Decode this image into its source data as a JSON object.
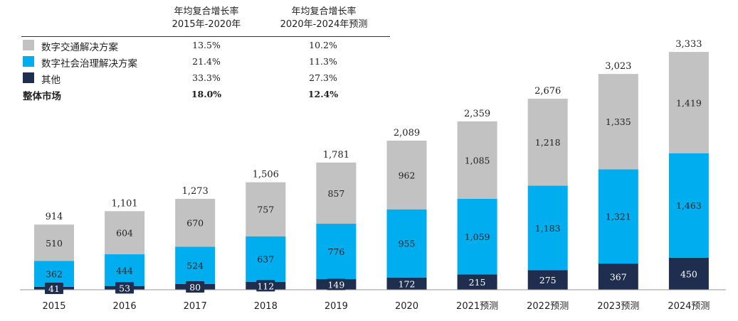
{
  "legend_table": {
    "header_1_line1": "年均复合增长率",
    "header_1_line2": "2015年-2020年",
    "header_2_line1": "年均复合增长率",
    "header_2_line2": "2020年-2024年预测",
    "rows": [
      {
        "label": "数字交通解决方案",
        "cagr_1": "13.5%",
        "cagr_2": "10.2%",
        "color": "#c2c2c2"
      },
      {
        "label": "数字社会治理解决方案",
        "cagr_1": "21.4%",
        "cagr_2": "11.3%",
        "color": "#00aeef"
      },
      {
        "label": "其他",
        "cagr_1": "33.3%",
        "cagr_2": "27.3%",
        "color": "#1f2d4f"
      }
    ],
    "total": {
      "label": "整体市场",
      "cagr_1": "18.0%",
      "cagr_2": "12.4%"
    }
  },
  "chart_data": {
    "type": "bar",
    "stacked": true,
    "categories": [
      "2015",
      "2016",
      "2017",
      "2018",
      "2019",
      "2020",
      "2021预测",
      "2022预测",
      "2023预测",
      "2024预测"
    ],
    "series": [
      {
        "name": "其他",
        "values": [
          41,
          53,
          80,
          112,
          149,
          172,
          215,
          275,
          367,
          450
        ],
        "color": "#1f2d4f"
      },
      {
        "name": "数字社会治理解决方案",
        "values": [
          362,
          444,
          524,
          637,
          776,
          955,
          1059,
          1183,
          1321,
          1463
        ],
        "color": "#00aeef"
      },
      {
        "name": "数字交通解决方案",
        "values": [
          510,
          604,
          670,
          757,
          857,
          962,
          1085,
          1218,
          1335,
          1419
        ],
        "color": "#c2c2c2"
      }
    ],
    "value_labels": [
      [
        "41",
        "53",
        "80",
        "112",
        "149",
        "172",
        "215",
        "275",
        "367",
        "450"
      ],
      [
        "362",
        "444",
        "524",
        "637",
        "776",
        "955",
        "1,059",
        "1,183",
        "1,321",
        "1,463"
      ],
      [
        "510",
        "604",
        "670",
        "757",
        "857",
        "962",
        "1,085",
        "1,218",
        "1,335",
        "1,419"
      ]
    ],
    "totals": [
      "914",
      "1,101",
      "1,273",
      "1,506",
      "1,781",
      "2,089",
      "2,359",
      "2,676",
      "3,023",
      "3,333"
    ],
    "total_values": [
      914,
      1101,
      1273,
      1506,
      1781,
      2089,
      2359,
      2676,
      3023,
      3333
    ],
    "ylim": [
      0,
      3333
    ],
    "grid": false,
    "legend_placement": "top-left"
  }
}
